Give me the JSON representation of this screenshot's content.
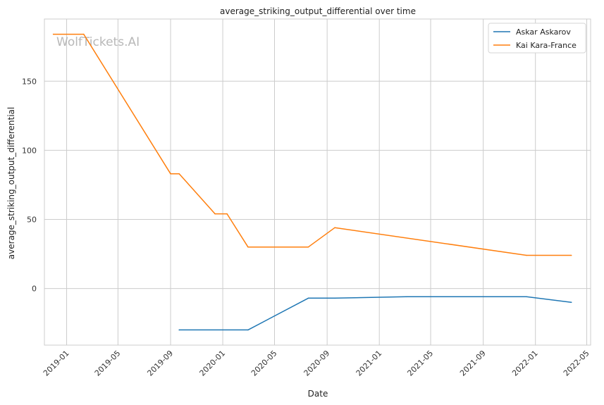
{
  "chart_data": {
    "type": "line",
    "title": "average_striking_output_differential over time",
    "xlabel": "Date",
    "ylabel": "average_striking_output_differential",
    "watermark": "WolfTickets.AI",
    "x_ticks": [
      "2019-01",
      "2019-05",
      "2019-09",
      "2020-01",
      "2020-05",
      "2020-09",
      "2021-01",
      "2021-05",
      "2021-09",
      "2022-01",
      "2022-05"
    ],
    "y_ticks": [
      0,
      50,
      100,
      150
    ],
    "xlim": [
      "2018-11-10",
      "2022-05-10"
    ],
    "ylim": [
      -41,
      195
    ],
    "grid": true,
    "legend_position": "top-right",
    "series": [
      {
        "name": "Askar Askarov",
        "color": "#1f77b4",
        "points": [
          {
            "x": "2019-09-21",
            "y": -30
          },
          {
            "x": "2020-02-29",
            "y": -30
          },
          {
            "x": "2020-07-19",
            "y": -7
          },
          {
            "x": "2020-09-19",
            "y": -7
          },
          {
            "x": "2021-03-06",
            "y": -6
          },
          {
            "x": "2021-12-11",
            "y": -6
          },
          {
            "x": "2022-03-26",
            "y": -10
          }
        ]
      },
      {
        "name": "Kai Kara-France",
        "color": "#ff7f0e",
        "points": [
          {
            "x": "2018-12-01",
            "y": 184
          },
          {
            "x": "2019-02-10",
            "y": 184
          },
          {
            "x": "2019-09-01",
            "y": 83
          },
          {
            "x": "2019-09-21",
            "y": 83
          },
          {
            "x": "2019-12-14",
            "y": 54
          },
          {
            "x": "2020-01-11",
            "y": 54
          },
          {
            "x": "2020-02-29",
            "y": 30
          },
          {
            "x": "2020-07-19",
            "y": 30
          },
          {
            "x": "2020-09-19",
            "y": 44
          },
          {
            "x": "2021-12-11",
            "y": 24
          },
          {
            "x": "2022-03-26",
            "y": 24
          }
        ]
      }
    ]
  }
}
